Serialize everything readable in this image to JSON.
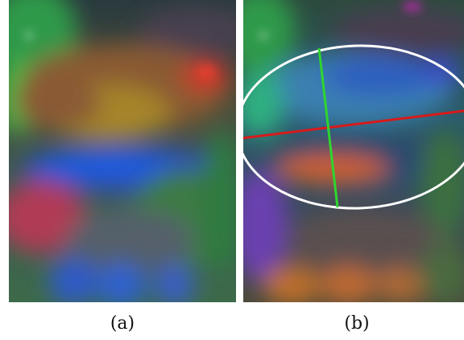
{
  "figure": {
    "panels": [
      {
        "caption": "(a)"
      },
      {
        "caption": "(b)"
      }
    ]
  },
  "colors": {
    "ellipse_outline": "#ffffff",
    "major_axis_line": "#d81a1a",
    "minor_axis_line": "#2fd52f"
  }
}
